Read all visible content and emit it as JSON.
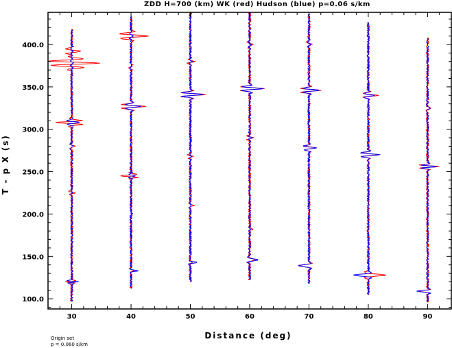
{
  "chart_data": {
    "type": "line",
    "title": "ZDD H=700 (km) WK (red) Hudson (blue) p=0.06 s/km",
    "xlabel": "Distance (deg)",
    "ylabel": "T - p X (s)",
    "xlim": [
      26,
      94
    ],
    "ylim": [
      88,
      438
    ],
    "x_ticks": [
      30,
      40,
      50,
      60,
      70,
      80,
      90
    ],
    "x_tick_labels": [
      "30",
      "40",
      "50",
      "60",
      "70",
      "80",
      "90"
    ],
    "y_ticks": [
      100,
      150,
      200,
      250,
      300,
      350,
      400
    ],
    "y_tick_labels": [
      "100.0",
      "150.0",
      "200.0",
      "250.0",
      "300.0",
      "350.0",
      "400.0"
    ],
    "grid": false,
    "legend": "none",
    "colors": {
      "wk": "#ff0000",
      "hudson": "#0000ff",
      "frame": "#000000"
    },
    "series": [
      {
        "name": "WK",
        "color": "#ff0000",
        "trace_start": [
          418,
          433,
          438,
          438,
          436,
          426,
          408
        ]
      },
      {
        "name": "Hudson",
        "color": "#0000ff",
        "trace_start": [
          418,
          433,
          438,
          438,
          436,
          426,
          408
        ]
      }
    ],
    "traces": [
      {
        "distance": 30,
        "t_start": 418,
        "t_end": 97,
        "events": [
          {
            "t": 378,
            "wk": 4.5,
            "hud": 0.3,
            "w": 8,
            "n": 3
          },
          {
            "t": 392,
            "wk": 1.5,
            "hud": 0.2,
            "w": 6,
            "n": 2
          },
          {
            "t": 308,
            "wk": -2.8,
            "hud": 1.3,
            "w": 5,
            "n": 2
          },
          {
            "t": 120,
            "wk": -1.0,
            "hud": 1.1,
            "w": 3,
            "n": 2
          },
          {
            "t": 225,
            "wk": 0.6,
            "hud": 0.2,
            "w": 4,
            "n": 2
          },
          {
            "t": 280,
            "wk": 0.4,
            "hud": 0.2,
            "w": 6,
            "n": 2
          }
        ]
      },
      {
        "distance": 40,
        "t_start": 433,
        "t_end": 112,
        "events": [
          {
            "t": 410,
            "wk": 3.0,
            "hud": 0.4,
            "w": 6,
            "n": 2
          },
          {
            "t": 327,
            "wk": 2.5,
            "hud": 1.6,
            "w": 5,
            "n": 2
          },
          {
            "t": 245,
            "wk": -1.8,
            "hud": 0.8,
            "w": 4,
            "n": 2
          },
          {
            "t": 133,
            "wk": 0.7,
            "hud": 1.1,
            "w": 3,
            "n": 1
          },
          {
            "t": 200,
            "wk": 0.4,
            "hud": 0.2,
            "w": 3,
            "n": 1
          },
          {
            "t": 375,
            "wk": 0.3,
            "hud": 0.2,
            "w": 6,
            "n": 2
          }
        ]
      },
      {
        "distance": 50,
        "t_start": 438,
        "t_end": 120,
        "events": [
          {
            "t": 341,
            "wk": 2.5,
            "hud": 2.2,
            "w": 5,
            "n": 2
          },
          {
            "t": 380,
            "wk": 0.7,
            "hud": 0.3,
            "w": 5,
            "n": 2
          },
          {
            "t": 268,
            "wk": 0.6,
            "hud": 0.2,
            "w": 4,
            "n": 2
          },
          {
            "t": 210,
            "wk": 0.5,
            "hud": 0.2,
            "w": 3,
            "n": 1
          },
          {
            "t": 143,
            "wk": 0.4,
            "hud": 1.1,
            "w": 3,
            "n": 1
          }
        ]
      },
      {
        "distance": 60,
        "t_start": 438,
        "t_end": 122,
        "events": [
          {
            "t": 348,
            "wk": 2.3,
            "hud": 2.1,
            "w": 5,
            "n": 2
          },
          {
            "t": 400,
            "wk": 0.6,
            "hud": 0.2,
            "w": 6,
            "n": 2
          },
          {
            "t": 290,
            "wk": 0.6,
            "hud": 0.3,
            "w": 5,
            "n": 2
          },
          {
            "t": 182,
            "wk": 0.5,
            "hud": 0.1,
            "w": 3,
            "n": 1
          },
          {
            "t": 146,
            "wk": 1.0,
            "hud": 1.4,
            "w": 4,
            "n": 1
          }
        ]
      },
      {
        "distance": 70,
        "t_start": 436,
        "t_end": 118,
        "events": [
          {
            "t": 346,
            "wk": 2.2,
            "hud": 1.8,
            "w": 5,
            "n": 2
          },
          {
            "t": 278,
            "wk": 1.0,
            "hud": 1.3,
            "w": 5,
            "n": 2
          },
          {
            "t": 400,
            "wk": 0.5,
            "hud": 0.2,
            "w": 6,
            "n": 2
          },
          {
            "t": 139,
            "wk": -1.6,
            "hud": -1.8,
            "w": 4,
            "n": 1
          }
        ]
      },
      {
        "distance": 80,
        "t_start": 426,
        "t_end": 105,
        "events": [
          {
            "t": 340,
            "wk": 1.6,
            "hud": 0.9,
            "w": 5,
            "n": 2
          },
          {
            "t": 270,
            "wk": 1.6,
            "hud": 1.9,
            "w": 5,
            "n": 2
          },
          {
            "t": 128,
            "wk": 3.0,
            "hud": -2.6,
            "w": 4,
            "n": 1
          }
        ]
      },
      {
        "distance": 90,
        "t_start": 408,
        "t_end": 96,
        "events": [
          {
            "t": 256,
            "wk": 2.0,
            "hud": 1.6,
            "w": 4,
            "n": 2
          },
          {
            "t": 325,
            "wk": 0.4,
            "hud": 0.3,
            "w": 4,
            "n": 1
          },
          {
            "t": 109,
            "wk": -1.6,
            "hud": -1.8,
            "w": 3,
            "n": 1
          }
        ]
      }
    ]
  },
  "footnote": {
    "line1": "Origin set",
    "line2": "p =  0.060 s/km"
  }
}
